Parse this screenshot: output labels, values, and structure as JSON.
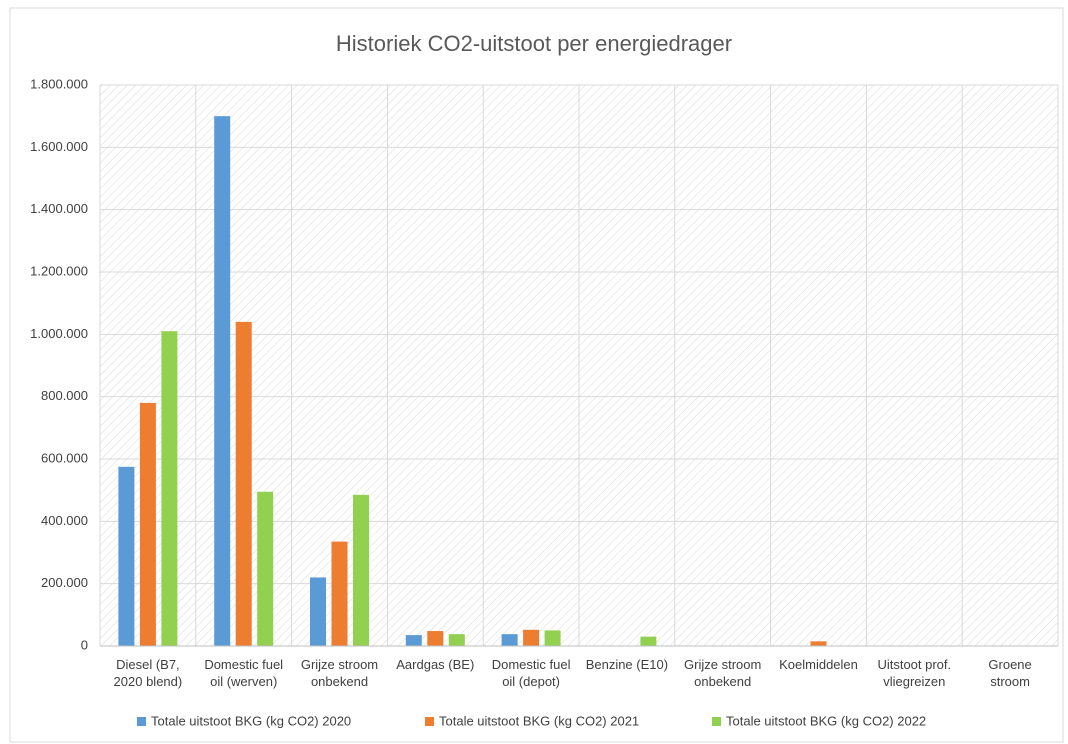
{
  "chart_data": {
    "type": "bar",
    "title": "Historiek CO2-uitstoot per energiedrager",
    "categories": [
      "Diesel (B7,\n2020 blend)",
      "Domestic fuel\noil (werven)",
      "Grijze stroom\nonbekend",
      "Aardgas (BE)",
      "Domestic fuel\noil (depot)",
      "Benzine (E10)",
      "Grijze stroom\nonbekend",
      "Koelmiddelen",
      "Uitstoot prof.\nvliegreizen",
      "Groene\nstroom"
    ],
    "series": [
      {
        "name": "Totale uitstoot BKG (kg CO2) 2020",
        "color": "#5b9bd5",
        "values": [
          575000,
          1700000,
          220000,
          35000,
          38000,
          null,
          null,
          null,
          null,
          null
        ]
      },
      {
        "name": "Totale uitstoot BKG (kg CO2) 2021",
        "color": "#ed7d31",
        "values": [
          780000,
          1040000,
          335000,
          48000,
          52000,
          null,
          null,
          15000,
          null,
          null
        ]
      },
      {
        "name": "Totale uitstoot BKG (kg CO2) 2022",
        "color": "#92d050",
        "values": [
          1010000,
          495000,
          485000,
          38000,
          50000,
          30000,
          null,
          null,
          null,
          null
        ]
      }
    ],
    "ylim": [
      0,
      1800000
    ],
    "yticks": [
      0,
      {
        "value": 200000,
        "label": "200.000"
      },
      {
        "value": 400000,
        "label": "400.000"
      },
      {
        "value": 600000,
        "label": "600.000"
      },
      {
        "value": 800000,
        "label": "800.000"
      },
      {
        "value": 1000000,
        "label": "1.000.000"
      },
      {
        "value": 1200000,
        "label": "1.200.000"
      },
      {
        "value": 1400000,
        "label": "1.400.000"
      },
      {
        "value": 1600000,
        "label": "1.600.000"
      },
      {
        "value": 1800000,
        "label": "1.800.000"
      }
    ],
    "grid": true,
    "legend": "bottom"
  }
}
